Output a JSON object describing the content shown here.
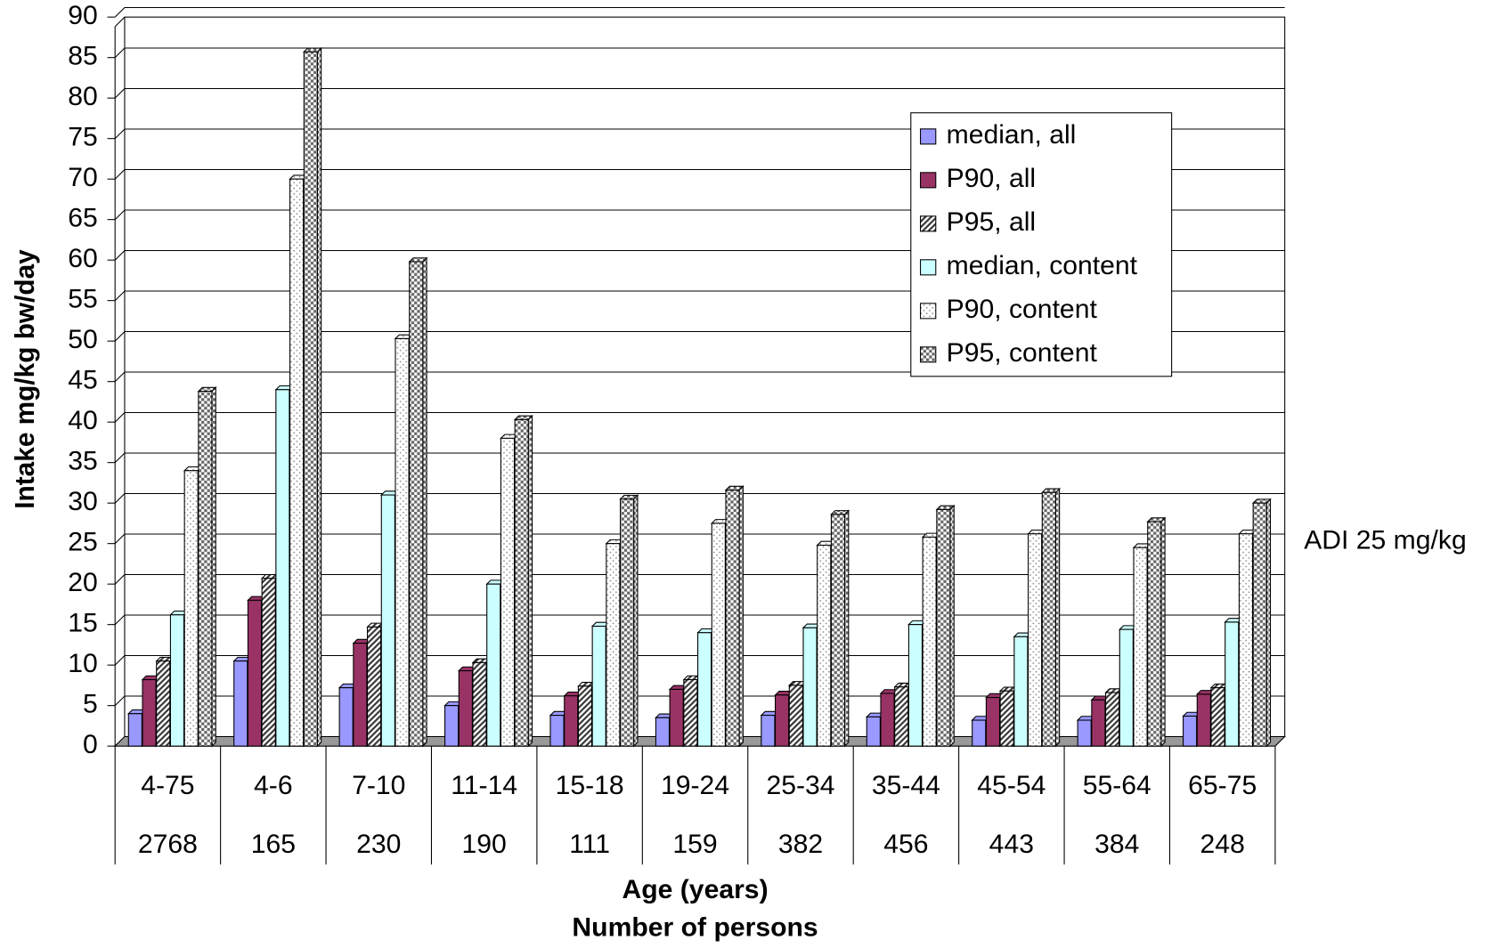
{
  "chart_data": {
    "type": "bar3d",
    "ylabel": "Intake mg/kg bw/day",
    "x_label_lines": [
      "Age (years)",
      "Number of persons"
    ],
    "annotation": "ADI 25 mg/kg",
    "categories": [
      "4-75",
      "4-6",
      "7-10",
      "11-14",
      "15-18",
      "19-24",
      "25-34",
      "35-44",
      "45-54",
      "55-64",
      "65-75"
    ],
    "category_counts": [
      2768,
      165,
      230,
      190,
      111,
      159,
      382,
      456,
      443,
      384,
      248
    ],
    "series": [
      {
        "name": "median, all",
        "color": "#9999ff",
        "pattern": "solid",
        "values": [
          4,
          10.5,
          7.2,
          5,
          3.8,
          3.5,
          3.8,
          3.6,
          3.2,
          3.2,
          3.7
        ]
      },
      {
        "name": "P90, all",
        "color": "#993366",
        "pattern": "solid",
        "values": [
          8.2,
          18,
          12.7,
          9.3,
          6.2,
          7,
          6.3,
          6.5,
          6,
          5.7,
          6.4
        ]
      },
      {
        "name": "P95, all",
        "color": "#333333",
        "pattern": "hatch",
        "values": [
          10.5,
          20.7,
          14.7,
          10.3,
          7.4,
          8.2,
          7.5,
          7.3,
          6.8,
          6.6,
          7.2
        ]
      },
      {
        "name": "median, content",
        "color": "#ccffff",
        "pattern": "solid",
        "values": [
          16.2,
          44,
          31,
          20,
          14.8,
          14,
          14.6,
          15,
          13.5,
          14.4,
          15.3
        ]
      },
      {
        "name": "P90, content",
        "color": "#777777",
        "pattern": "dots",
        "values": [
          34,
          70,
          50.3,
          38,
          25,
          27.5,
          24.8,
          25.8,
          26.2,
          24.5,
          26.2
        ]
      },
      {
        "name": "P95, content",
        "color": "#666666",
        "pattern": "checker",
        "values": [
          43.8,
          85.7,
          59.8,
          40.3,
          30.5,
          31.6,
          28.6,
          29.2,
          31.3,
          27.7,
          30
        ]
      }
    ],
    "ylim": [
      0,
      90
    ],
    "yticks": [
      0,
      5,
      10,
      15,
      20,
      25,
      30,
      35,
      40,
      45,
      50,
      55,
      60,
      65,
      70,
      75,
      80,
      85,
      90
    ],
    "grid": true,
    "legend": "upper right"
  }
}
